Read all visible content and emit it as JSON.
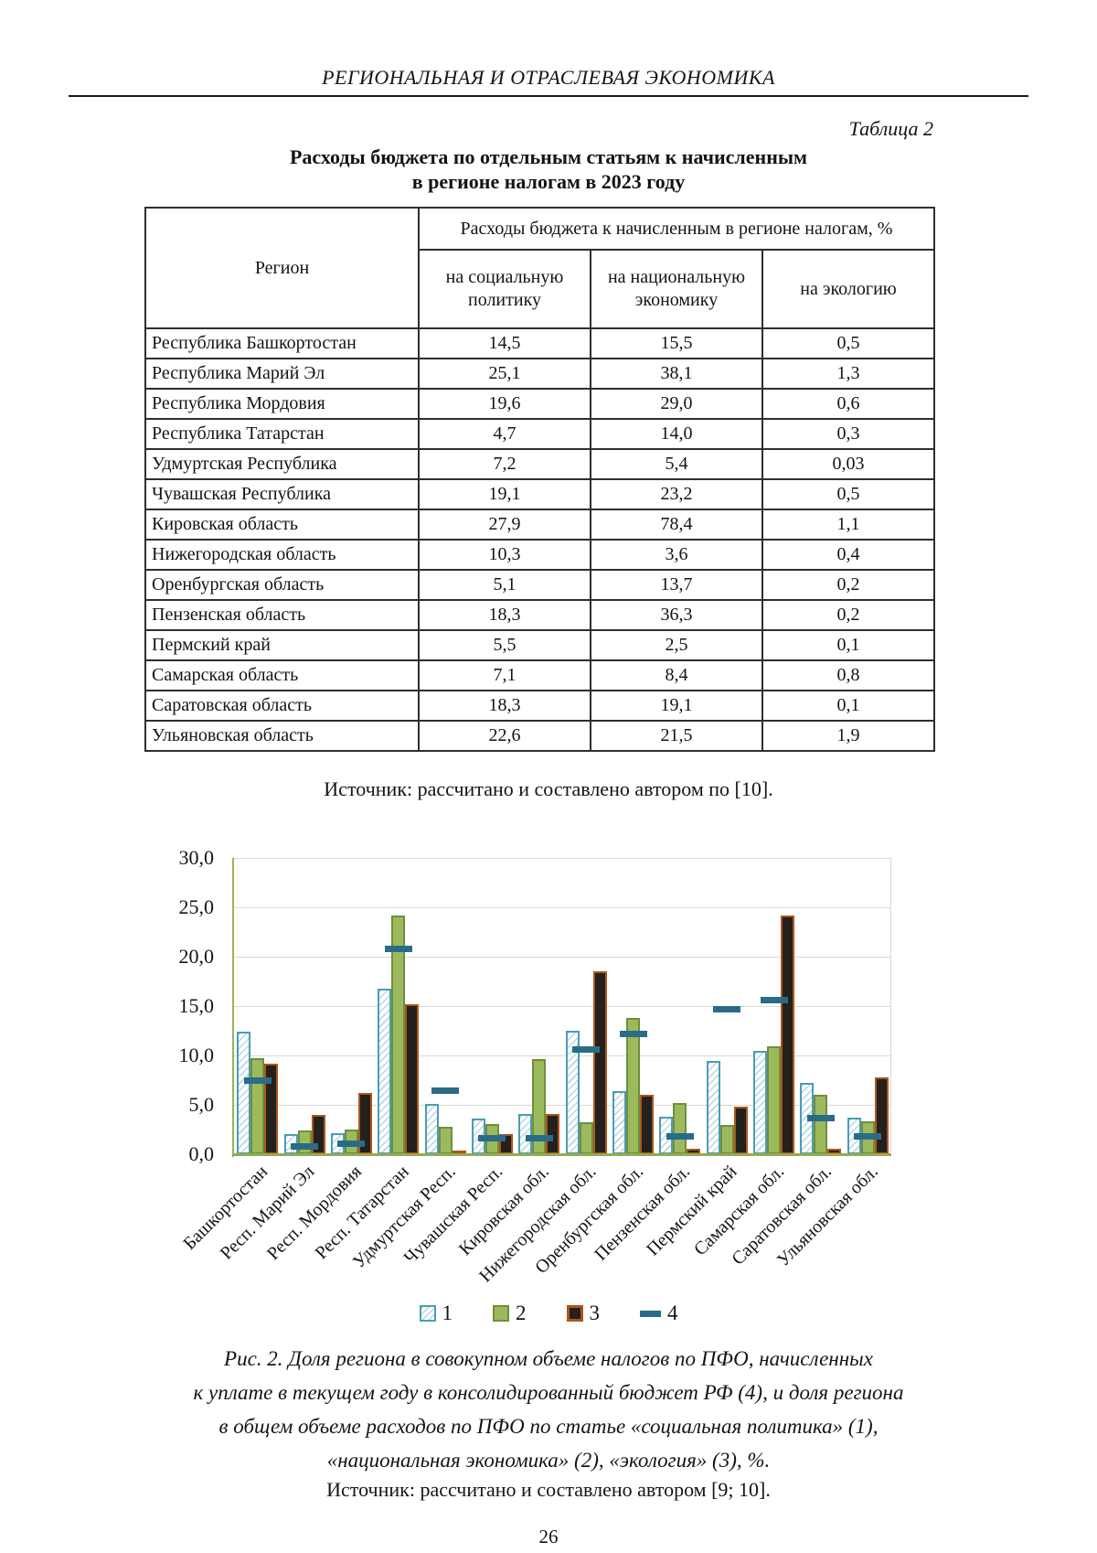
{
  "page": {
    "header": "РЕГИОНАЛЬНАЯ И ОТРАСЛЕВАЯ ЭКОНОМИКА",
    "table_label": "Таблица 2",
    "table_title_line1": "Расходы бюджета по отдельным статьям к начисленным",
    "table_title_line2": "в регионе налогам в 2023 году",
    "table_source": "Источник: рассчитано и составлено автором по [10].",
    "page_number": "26"
  },
  "table": {
    "col_region": "Регион",
    "col_group": "Расходы бюджета к начисленным в регионе налогам, %",
    "subcols": [
      "на социальную политику",
      "на национальную экономику",
      "на экологию"
    ],
    "rows": [
      {
        "region": "Республика Башкортостан",
        "social": "14,5",
        "economy": "15,5",
        "ecology": "0,5"
      },
      {
        "region": "Республика Марий Эл",
        "social": "25,1",
        "economy": "38,1",
        "ecology": "1,3"
      },
      {
        "region": "Республика Мордовия",
        "social": "19,6",
        "economy": "29,0",
        "ecology": "0,6"
      },
      {
        "region": "Республика Татарстан",
        "social": "4,7",
        "economy": "14,0",
        "ecology": "0,3"
      },
      {
        "region": "Удмуртская Республика",
        "social": "7,2",
        "economy": "5,4",
        "ecology": "0,03"
      },
      {
        "region": "Чувашская Республика",
        "social": "19,1",
        "economy": "23,2",
        "ecology": "0,5"
      },
      {
        "region": "Кировская область",
        "social": "27,9",
        "economy": "78,4",
        "ecology": "1,1"
      },
      {
        "region": "Нижегородская область",
        "social": "10,3",
        "economy": "3,6",
        "ecology": "0,4"
      },
      {
        "region": "Оренбургская область",
        "social": "5,1",
        "economy": "13,7",
        "ecology": "0,2"
      },
      {
        "region": "Пензенская область",
        "social": "18,3",
        "economy": "36,3",
        "ecology": "0,2"
      },
      {
        "region": "Пермский край",
        "social": "5,5",
        "economy": "2,5",
        "ecology": "0,1"
      },
      {
        "region": "Самарская область",
        "social": "7,1",
        "economy": "8,4",
        "ecology": "0,8"
      },
      {
        "region": "Саратовская область",
        "social": "18,3",
        "economy": "19,1",
        "ecology": "0,1"
      },
      {
        "region": "Ульяновская область",
        "social": "22,6",
        "economy": "21,5",
        "ecology": "1,9"
      }
    ]
  },
  "chart_data": {
    "type": "bar",
    "categories": [
      "Башкортостан",
      "Респ. Марий Эл",
      "Респ. Мордовия",
      "Респ. Татарстан",
      "Удмуртская Респ.",
      "Чувашская Респ.",
      "Кировская обл.",
      "Нижегородская обл.",
      "Оренбургская обл.",
      "Пензенская обл.",
      "Пермский край",
      "Самарская обл.",
      "Саратовская обл.",
      "Ульяновская обл."
    ],
    "series": [
      {
        "name": "1",
        "style": "hatched-bar",
        "values": [
          12.4,
          2.0,
          2.1,
          16.8,
          5.1,
          3.6,
          4.1,
          12.5,
          6.4,
          3.8,
          9.4,
          10.5,
          7.2,
          3.7
        ]
      },
      {
        "name": "2",
        "style": "green-bar",
        "values": [
          9.7,
          2.4,
          2.5,
          24.2,
          2.8,
          3.1,
          9.6,
          3.2,
          13.8,
          5.2,
          3.0,
          10.9,
          6.0,
          3.3
        ]
      },
      {
        "name": "3",
        "style": "dark-bar",
        "values": [
          9.2,
          4.0,
          6.2,
          15.2,
          0.4,
          2.0,
          4.1,
          18.5,
          6.0,
          0.6,
          4.8,
          24.2,
          0.6,
          7.8
        ]
      },
      {
        "name": "4",
        "style": "dash-marker",
        "values": [
          7.5,
          0.8,
          1.1,
          20.8,
          6.4,
          1.6,
          1.6,
          10.6,
          12.2,
          1.8,
          14.7,
          15.6,
          3.7,
          1.8
        ]
      }
    ],
    "ylim": [
      0,
      30
    ],
    "ytick_step": 5,
    "ytick_labels": [
      "0,0",
      "5,0",
      "10,0",
      "15,0",
      "20,0",
      "25,0",
      "30,0"
    ],
    "grid": true,
    "legend_position": "bottom",
    "colors": {
      "series1_border": "#4d9cb5",
      "series1_hatch": "#b7d6e2",
      "series2_fill": "#9cba5d",
      "series2_border": "#6e8f3b",
      "series3_fill": "#24201d",
      "series3_border": "#ac561b",
      "series4_dash": "#2a6c87",
      "axis": "#94ab52",
      "gridline": "#d9d9d9"
    }
  },
  "figure": {
    "caption_lines": [
      "Рис. 2. Доля региона в совокупном объеме налогов по ПФО, начисленных",
      "к уплате в текущем году в консолидированный бюджет РФ (4), и доля региона",
      "в общем объеме расходов по ПФО по статье «социальная политика» (1),",
      "«национальная экономика» (2), «экология» (3), %."
    ],
    "source": "Источник: рассчитано и составлено автором [9; 10]."
  }
}
